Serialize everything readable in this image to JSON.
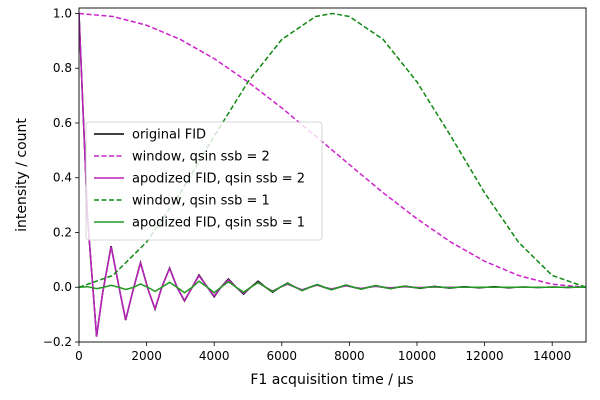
{
  "chart_data": {
    "type": "line",
    "xlabel": "F1 acquisition time / µs",
    "ylabel": "intensity / count",
    "xlim": [
      0,
      15000
    ],
    "ylim": [
      -0.2,
      1.02
    ],
    "xticks": [
      0,
      2000,
      4000,
      6000,
      8000,
      10000,
      12000,
      14000
    ],
    "xtick_labels": [
      "0",
      "2000",
      "4000",
      "6000",
      "8000",
      "10000",
      "12000",
      "14000"
    ],
    "yticks": [
      -0.2,
      0.0,
      0.2,
      0.4,
      0.6,
      0.8,
      1.0
    ],
    "ytick_labels": [
      "−0.2",
      "0.0",
      "0.2",
      "0.4",
      "0.6",
      "0.8",
      "1.0"
    ],
    "grid": false,
    "legend_position": "center-left",
    "series": [
      {
        "name": "original FID",
        "color": "#000000",
        "style": "solid",
        "points": [
          [
            0,
            1.0
          ],
          [
            250,
            0.26
          ],
          [
            520,
            -0.18
          ],
          [
            700,
            -0.02
          ],
          [
            950,
            0.15
          ],
          [
            1200,
            -0.01
          ],
          [
            1380,
            -0.12
          ],
          [
            1600,
            -0.01
          ],
          [
            1820,
            0.09
          ],
          [
            2050,
            -0.01
          ],
          [
            2250,
            -0.08
          ],
          [
            2450,
            0.0
          ],
          [
            2680,
            0.07
          ],
          [
            2900,
            0.0
          ],
          [
            3120,
            -0.05
          ],
          [
            3350,
            0.0
          ],
          [
            3550,
            0.045
          ],
          [
            3800,
            0.0
          ],
          [
            4000,
            -0.035
          ],
          [
            4200,
            0.0
          ],
          [
            4420,
            0.03
          ],
          [
            4650,
            0.0
          ],
          [
            4870,
            -0.025
          ],
          [
            5080,
            0.0
          ],
          [
            5300,
            0.022
          ],
          [
            5520,
            0.0
          ],
          [
            5730,
            -0.018
          ],
          [
            5950,
            0.0
          ],
          [
            6170,
            0.015
          ],
          [
            6400,
            0.0
          ],
          [
            6600,
            -0.012
          ],
          [
            6830,
            0.0
          ],
          [
            7050,
            0.01
          ],
          [
            7250,
            0.0
          ],
          [
            7470,
            -0.009
          ],
          [
            7700,
            0.0
          ],
          [
            7900,
            0.008
          ],
          [
            8120,
            0.0
          ],
          [
            8350,
            -0.007
          ],
          [
            8570,
            0.0
          ],
          [
            8780,
            0.006
          ],
          [
            9000,
            0.0
          ],
          [
            9220,
            -0.005
          ],
          [
            9430,
            0.0
          ],
          [
            9650,
            0.004
          ],
          [
            9870,
            0.0
          ],
          [
            10100,
            -0.004
          ],
          [
            10300,
            0.0
          ],
          [
            10520,
            0.003
          ],
          [
            10750,
            0.0
          ],
          [
            10970,
            -0.003
          ],
          [
            11200,
            0.0
          ],
          [
            11400,
            0.002
          ],
          [
            11620,
            0.0
          ],
          [
            11850,
            -0.002
          ],
          [
            12050,
            0.0
          ],
          [
            12280,
            0.002
          ],
          [
            12500,
            0.0
          ],
          [
            12720,
            -0.002
          ],
          [
            12930,
            0.0
          ],
          [
            13150,
            0.001
          ],
          [
            13370,
            0.0
          ],
          [
            13580,
            -0.001
          ],
          [
            13800,
            0.0
          ],
          [
            14030,
            0.001
          ],
          [
            14250,
            0.0
          ],
          [
            14460,
            -0.001
          ],
          [
            14700,
            0.0
          ],
          [
            15000,
            0.0
          ]
        ]
      },
      {
        "name": "window, qsin ssb = 2",
        "color": "#cc22cc",
        "style": "dashed",
        "points": [
          [
            0,
            1.0
          ],
          [
            1000,
            0.989
          ],
          [
            2000,
            0.957
          ],
          [
            3000,
            0.905
          ],
          [
            4000,
            0.835
          ],
          [
            5000,
            0.75
          ],
          [
            6000,
            0.655
          ],
          [
            7000,
            0.552
          ],
          [
            8000,
            0.448
          ],
          [
            9000,
            0.345
          ],
          [
            10000,
            0.25
          ],
          [
            11000,
            0.165
          ],
          [
            12000,
            0.095
          ],
          [
            13000,
            0.043
          ],
          [
            14000,
            0.011
          ],
          [
            15000,
            0.0
          ]
        ]
      },
      {
        "name": "apodized FID, qsin ssb = 2",
        "color": "#bb22bb",
        "style": "solid",
        "points": [
          [
            0,
            1.0
          ],
          [
            250,
            0.26
          ],
          [
            520,
            -0.18
          ],
          [
            700,
            -0.02
          ],
          [
            950,
            0.148
          ],
          [
            1200,
            -0.01
          ],
          [
            1380,
            -0.118
          ],
          [
            1600,
            -0.01
          ],
          [
            1820,
            0.088
          ],
          [
            2050,
            -0.01
          ],
          [
            2250,
            -0.078
          ],
          [
            2450,
            0.0
          ],
          [
            2680,
            0.068
          ],
          [
            2900,
            0.0
          ],
          [
            3120,
            -0.048
          ],
          [
            3350,
            0.0
          ],
          [
            3550,
            0.042
          ],
          [
            3800,
            0.0
          ],
          [
            4000,
            -0.032
          ],
          [
            4200,
            0.0
          ],
          [
            4420,
            0.027
          ],
          [
            4650,
            0.0
          ],
          [
            4870,
            -0.022
          ],
          [
            5080,
            0.0
          ],
          [
            5300,
            0.018
          ],
          [
            5520,
            0.0
          ],
          [
            5730,
            -0.014
          ],
          [
            5950,
            0.0
          ],
          [
            6170,
            0.011
          ],
          [
            6400,
            0.0
          ],
          [
            6600,
            -0.009
          ],
          [
            6830,
            0.0
          ],
          [
            7050,
            0.007
          ],
          [
            7250,
            0.0
          ],
          [
            7470,
            -0.006
          ],
          [
            7700,
            0.0
          ],
          [
            7900,
            0.005
          ],
          [
            8120,
            0.0
          ],
          [
            8350,
            -0.004
          ],
          [
            8570,
            0.0
          ],
          [
            8780,
            0.003
          ],
          [
            9000,
            0.0
          ],
          [
            9220,
            -0.002
          ],
          [
            9430,
            0.0
          ],
          [
            9650,
            0.002
          ],
          [
            9870,
            0.0
          ],
          [
            10100,
            -0.001
          ],
          [
            10300,
            0.0
          ],
          [
            10520,
            0.001
          ],
          [
            10750,
            0.0
          ],
          [
            15000,
            0.0
          ]
        ]
      },
      {
        "name": "window, qsin ssb = 1",
        "color": "#118811",
        "style": "dashed",
        "points": [
          [
            0,
            0.0
          ],
          [
            1000,
            0.043
          ],
          [
            2000,
            0.165
          ],
          [
            3000,
            0.345
          ],
          [
            4000,
            0.552
          ],
          [
            5000,
            0.75
          ],
          [
            6000,
            0.905
          ],
          [
            7000,
            0.989
          ],
          [
            7500,
            1.0
          ],
          [
            8000,
            0.989
          ],
          [
            9000,
            0.905
          ],
          [
            10000,
            0.75
          ],
          [
            11000,
            0.552
          ],
          [
            12000,
            0.345
          ],
          [
            13000,
            0.165
          ],
          [
            14000,
            0.043
          ],
          [
            15000,
            0.0
          ]
        ]
      },
      {
        "name": "apodized FID, qsin ssb = 1",
        "color": "#229922",
        "style": "solid",
        "points": [
          [
            0,
            0.0
          ],
          [
            250,
            0.002
          ],
          [
            520,
            -0.005
          ],
          [
            700,
            -0.001
          ],
          [
            950,
            0.007
          ],
          [
            1200,
            -0.001
          ],
          [
            1380,
            -0.008
          ],
          [
            1600,
            -0.001
          ],
          [
            1820,
            0.012
          ],
          [
            2050,
            -0.001
          ],
          [
            2250,
            -0.015
          ],
          [
            2450,
            0.0
          ],
          [
            2680,
            0.018
          ],
          [
            2900,
            0.0
          ],
          [
            3120,
            -0.02
          ],
          [
            3350,
            0.0
          ],
          [
            3550,
            0.022
          ],
          [
            3800,
            0.0
          ],
          [
            4000,
            -0.02
          ],
          [
            4200,
            0.0
          ],
          [
            4420,
            0.02
          ],
          [
            4650,
            0.0
          ],
          [
            4870,
            -0.018
          ],
          [
            5080,
            0.0
          ],
          [
            5300,
            0.017
          ],
          [
            5520,
            0.0
          ],
          [
            5730,
            -0.016
          ],
          [
            5950,
            0.0
          ],
          [
            6170,
            0.014
          ],
          [
            6400,
            0.0
          ],
          [
            6600,
            -0.012
          ],
          [
            6830,
            0.0
          ],
          [
            7050,
            0.01
          ],
          [
            7250,
            0.0
          ],
          [
            7470,
            -0.009
          ],
          [
            7700,
            0.0
          ],
          [
            7900,
            0.008
          ],
          [
            8120,
            0.0
          ],
          [
            8350,
            -0.007
          ],
          [
            8570,
            0.0
          ],
          [
            8780,
            0.006
          ],
          [
            9000,
            0.0
          ],
          [
            9220,
            -0.005
          ],
          [
            9430,
            0.0
          ],
          [
            9650,
            0.004
          ],
          [
            9870,
            0.0
          ],
          [
            10100,
            -0.003
          ],
          [
            10300,
            0.0
          ],
          [
            10520,
            0.002
          ],
          [
            10750,
            0.0
          ],
          [
            10970,
            -0.002
          ],
          [
            11200,
            0.0
          ],
          [
            11400,
            0.001
          ],
          [
            11620,
            0.0
          ],
          [
            15000,
            0.0
          ]
        ]
      }
    ]
  }
}
